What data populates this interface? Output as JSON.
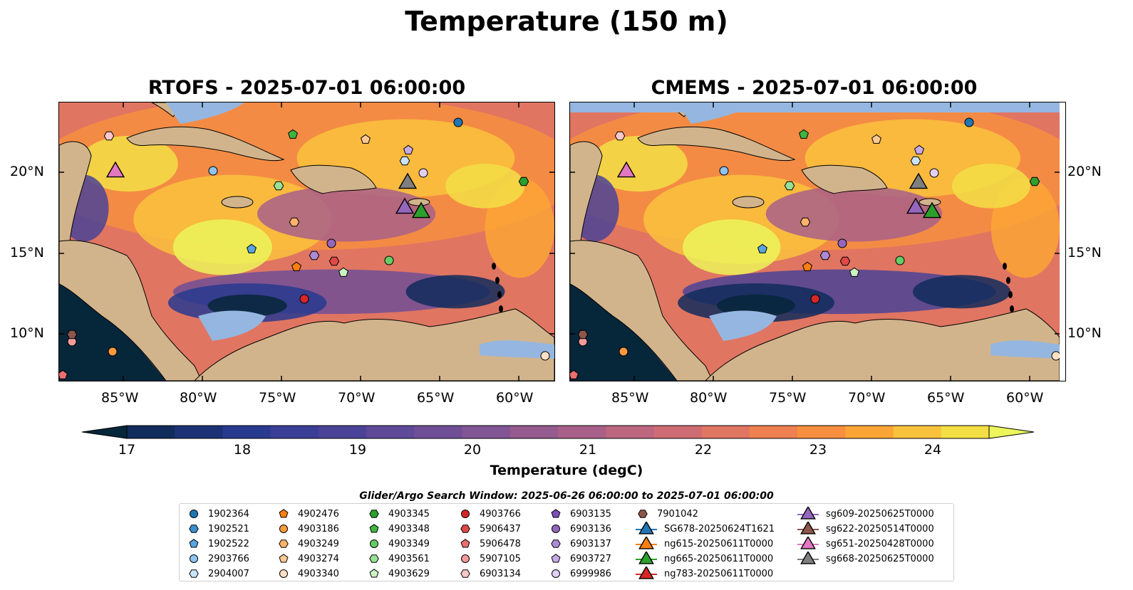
{
  "figure": {
    "suptitle": "Temperature (150 m)",
    "panels": [
      {
        "title": "RTOFS - 2025-07-01 06:00:00",
        "variant": "rtofs"
      },
      {
        "title": "CMEMS - 2025-07-01 06:00:00",
        "variant": "cmems"
      }
    ],
    "lon_ticks": [
      "85°W",
      "80°W",
      "75°W",
      "70°W",
      "65°W",
      "60°W"
    ],
    "lat_ticks": [
      "20°N",
      "15°N",
      "10°N"
    ]
  },
  "colorbar": {
    "label": "Temperature (degC)",
    "ticks": [
      "17",
      "18",
      "19",
      "20",
      "21",
      "22",
      "23",
      "24"
    ],
    "min": 17,
    "max": 24.5,
    "step": 0.5,
    "colors": [
      "#06263a",
      "#102c5c",
      "#1b3274",
      "#283a8f",
      "#3a3e96",
      "#4b4397",
      "#5e4a98",
      "#704f97",
      "#825595",
      "#955b8f",
      "#a96088",
      "#bc6680",
      "#cf6c73",
      "#e07562",
      "#ef8050",
      "#f78f3f",
      "#fba536",
      "#f9c23c",
      "#f3de45",
      "#ecf55a"
    ]
  },
  "map_colors": {
    "land": "#d2b48c",
    "ocean_mask": "#95b6e0",
    "coast": "#000000"
  },
  "legend": {
    "title": "Glider/Argo Search Window: 2025-06-26 06:00:00 to 2025-07-01 06:00:00",
    "columns": [
      [
        {
          "label": "1902364",
          "marker": "circle",
          "color": "#1f77b4"
        },
        {
          "label": "1902521",
          "marker": "hexagon",
          "color": "#3a8fd0"
        },
        {
          "label": "1902522",
          "marker": "pentagon",
          "color": "#5aa5e0"
        },
        {
          "label": "2903766",
          "marker": "circle",
          "color": "#8ec4f0"
        },
        {
          "label": "2904007",
          "marker": "hexagon",
          "color": "#c8e4fa"
        }
      ],
      [
        {
          "label": "4902476",
          "marker": "pentagon",
          "color": "#ff7f0e"
        },
        {
          "label": "4903186",
          "marker": "circle",
          "color": "#ff9a3c"
        },
        {
          "label": "4903249",
          "marker": "hexagon",
          "color": "#ffb36a"
        },
        {
          "label": "4903274",
          "marker": "pentagon",
          "color": "#ffc995"
        },
        {
          "label": "4903340",
          "marker": "circle",
          "color": "#ffe0c2"
        }
      ],
      [
        {
          "label": "4903345",
          "marker": "hexagon",
          "color": "#2ca02c"
        },
        {
          "label": "4903348",
          "marker": "pentagon",
          "color": "#3fb53f"
        },
        {
          "label": "4903349",
          "marker": "circle",
          "color": "#66cc66"
        },
        {
          "label": "4903561",
          "marker": "hexagon",
          "color": "#98e098"
        },
        {
          "label": "4903629",
          "marker": "pentagon",
          "color": "#caf2c2"
        }
      ],
      [
        {
          "label": "4903766",
          "marker": "circle",
          "color": "#d62728"
        },
        {
          "label": "5906437",
          "marker": "hexagon",
          "color": "#e04848"
        },
        {
          "label": "5906478",
          "marker": "pentagon",
          "color": "#ea6f6f"
        },
        {
          "label": "5907105",
          "marker": "circle",
          "color": "#f39b9b"
        },
        {
          "label": "6903134",
          "marker": "hexagon",
          "color": "#fac8c8"
        }
      ],
      [
        {
          "label": "6903135",
          "marker": "pentagon",
          "color": "#7e4fb8"
        },
        {
          "label": "6903136",
          "marker": "circle",
          "color": "#9467bd"
        },
        {
          "label": "6903137",
          "marker": "hexagon",
          "color": "#ad8ad6"
        },
        {
          "label": "6903727",
          "marker": "pentagon",
          "color": "#c7aae8"
        },
        {
          "label": "6999986",
          "marker": "circle",
          "color": "#e1cff5"
        }
      ],
      [
        {
          "label": "7901042",
          "marker": "hexagon",
          "color": "#8c564b"
        },
        {
          "label": "SG678-20250624T1621",
          "marker": "triangle",
          "color": "#1f77b4"
        },
        {
          "label": "ng615-20250611T0000",
          "marker": "triangle",
          "color": "#ff7f0e"
        },
        {
          "label": "ng665-20250611T0000",
          "marker": "triangle",
          "color": "#2ca02c"
        },
        {
          "label": "ng783-20250611T0000",
          "marker": "triangle",
          "color": "#d62728"
        }
      ],
      [
        {
          "label": "sg609-20250625T0000",
          "marker": "triangle",
          "color": "#9467bd"
        },
        {
          "label": "sg622-20250514T0000",
          "marker": "triangle",
          "color": "#8c564b"
        },
        {
          "label": "sg651-20250428T0000",
          "marker": "triangle",
          "color": "#e377c2"
        },
        {
          "label": "sg668-20250625T0000",
          "marker": "triangle",
          "color": "#7f7f7f"
        }
      ]
    ]
  }
}
